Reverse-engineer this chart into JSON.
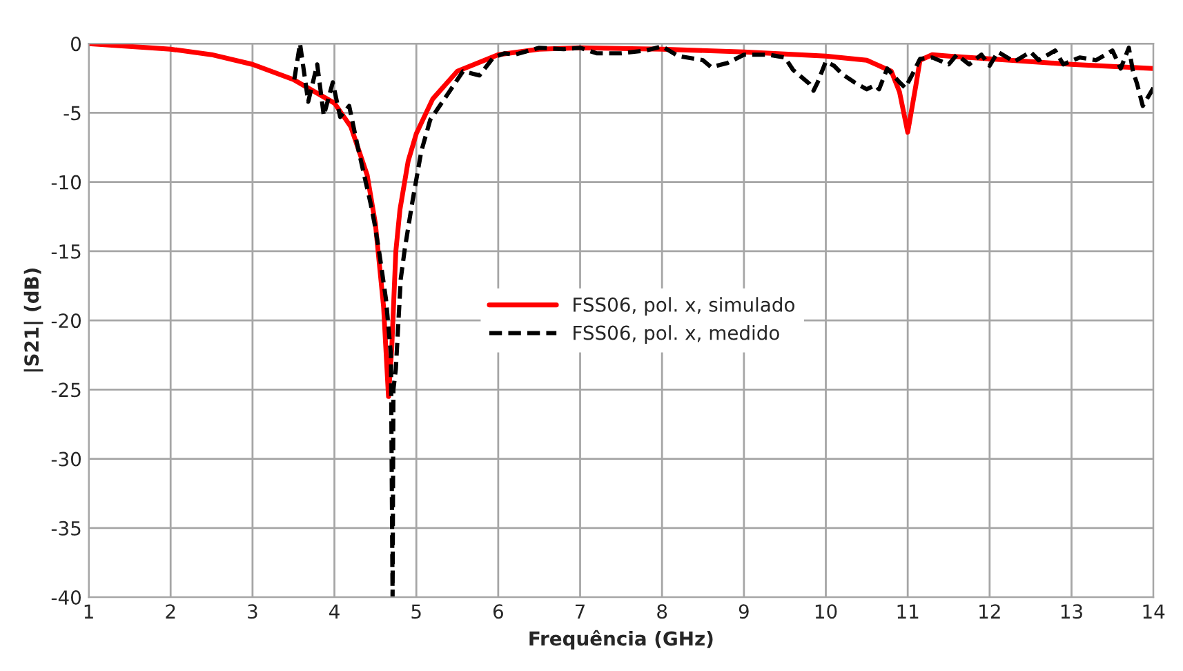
{
  "chart_data": {
    "type": "line",
    "xlabel": "Frequência (GHz)",
    "ylabel": "|S21| (dB)",
    "xlim": [
      1,
      14
    ],
    "xticks": [
      1,
      2,
      3,
      4,
      5,
      6,
      7,
      8,
      9,
      10,
      11,
      12,
      13,
      14
    ],
    "ylim": [
      -40,
      0
    ],
    "yticks": [
      {
        "value": -40,
        "label": "-40"
      },
      {
        "value": -35,
        "label": "-35"
      },
      {
        "value": -30,
        "label": "-30"
      },
      {
        "value": -25,
        "label": "-25"
      },
      {
        "value": -20,
        "label": "-20"
      },
      {
        "value": -15,
        "label": "-15"
      },
      {
        "value": -10,
        "label": "-10"
      },
      {
        "value": -5,
        "label": "-5"
      },
      0
    ],
    "grid": true,
    "legend": "center",
    "marker": "none",
    "series": [
      {
        "name": "FSS06, pol. x, simulado",
        "color": "#ff0000",
        "line_style": "solid",
        "x": [
          1,
          2,
          2.5,
          3,
          3.5,
          4,
          4.2,
          4.4,
          4.5,
          4.6,
          4.66,
          4.7,
          4.75,
          4.8,
          4.9,
          5,
          5.2,
          5.5,
          6,
          6.5,
          7,
          8,
          9,
          10,
          10.5,
          10.8,
          10.9,
          11,
          11.1,
          11.15,
          11.3,
          11.5,
          12,
          13,
          14
        ],
        "values": [
          0,
          -0.4,
          -0.8,
          -1.5,
          -2.6,
          -4.3,
          -6,
          -9.5,
          -13,
          -19,
          -25.5,
          -22,
          -15,
          -12,
          -8.5,
          -6.5,
          -4,
          -2,
          -0.8,
          -0.4,
          -0.3,
          -0.4,
          -0.6,
          -0.9,
          -1.2,
          -2,
          -3.5,
          -6.4,
          -3,
          -1.2,
          -0.8,
          -0.9,
          -1.1,
          -1.5,
          -1.8
        ]
      },
      {
        "name": "FSS06, pol. x, medido",
        "color": "#000000",
        "line_style": "dashed",
        "x": [
          3.51,
          3.58,
          3.68,
          3.79,
          3.87,
          3.98,
          4.07,
          4.18,
          4.29,
          4.44,
          4.49,
          4.55,
          4.63,
          4.69,
          4.71,
          4.72,
          4.75,
          4.81,
          4.86,
          4.95,
          5.06,
          5.17,
          5.4,
          5.57,
          5.77,
          5.94,
          6.08,
          6.2,
          6.5,
          6.8,
          7,
          7.2,
          7.5,
          7.8,
          8,
          8.2,
          8.5,
          8.6,
          8.8,
          9,
          9.3,
          9.5,
          9.6,
          9.8,
          9.85,
          9.9,
          10,
          10.1,
          10.2,
          10.35,
          10.5,
          10.6,
          10.65,
          10.75,
          10.9,
          10.97,
          11.05,
          11.15,
          11.3,
          11.5,
          11.6,
          11.75,
          11.9,
          12,
          12.1,
          12.3,
          12.5,
          12.6,
          12.8,
          12.9,
          13.1,
          13.3,
          13.5,
          13.6,
          13.7,
          13.75,
          13.8,
          13.87,
          13.95,
          14
        ],
        "values": [
          -2.6,
          0,
          -4.2,
          -1.5,
          -5.2,
          -2.8,
          -5.3,
          -4.5,
          -7.6,
          -11.5,
          -13,
          -15.2,
          -18.5,
          -22.5,
          -40,
          -25,
          -23.5,
          -17,
          -14.8,
          -11.5,
          -7.8,
          -5.5,
          -3.5,
          -2,
          -2.3,
          -1,
          -0.7,
          -0.8,
          -0.3,
          -0.4,
          -0.3,
          -0.7,
          -0.7,
          -0.5,
          -0.2,
          -0.9,
          -1.2,
          -1.7,
          -1.4,
          -0.8,
          -0.8,
          -1.0,
          -1.9,
          -2.9,
          -3.4,
          -2.8,
          -1.3,
          -1.6,
          -2.2,
          -2.8,
          -3.3,
          -3.0,
          -3.3,
          -1.8,
          -2.8,
          -3.2,
          -2.3,
          -1.1,
          -1.0,
          -1.5,
          -0.8,
          -1.5,
          -0.8,
          -1.6,
          -0.6,
          -1.3,
          -0.6,
          -1.2,
          -0.5,
          -1.5,
          -1.0,
          -1.2,
          -0.5,
          -1.8,
          -0.3,
          -2,
          -2.9,
          -4.5,
          -3.7,
          -3.2
        ]
      }
    ]
  }
}
